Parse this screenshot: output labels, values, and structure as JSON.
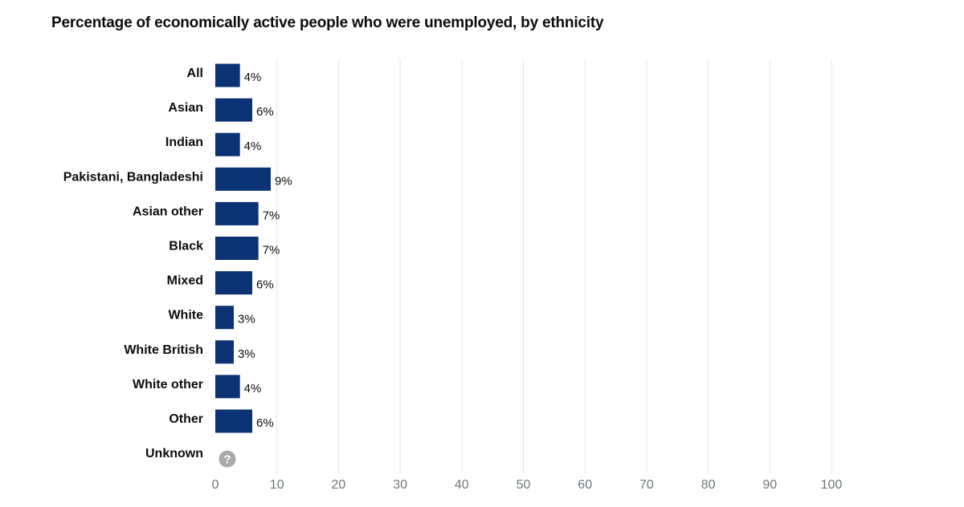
{
  "chart_data": {
    "type": "bar",
    "orientation": "horizontal",
    "title": "Percentage of economically active people who were unemployed, by ethnicity",
    "categories": [
      "All",
      "Asian",
      "Indian",
      "Pakistani, Bangladeshi",
      "Asian other",
      "Black",
      "Mixed",
      "White",
      "White British",
      "White other",
      "Other",
      "Unknown"
    ],
    "values": [
      4,
      6,
      4,
      9,
      7,
      7,
      6,
      3,
      3,
      4,
      6,
      null
    ],
    "value_labels": [
      "4%",
      "6%",
      "4%",
      "9%",
      "7%",
      "7%",
      "6%",
      "3%",
      "3%",
      "4%",
      "6%",
      ""
    ],
    "missing_marker": "?",
    "xlim": [
      0,
      100
    ],
    "x_ticks": [
      0,
      10,
      20,
      30,
      40,
      50,
      60,
      70,
      80,
      90,
      100
    ],
    "grid": true,
    "bar_color": "#0b3274",
    "grid_color": "#e6e6e6",
    "missing_color": "#a9a9a9"
  }
}
